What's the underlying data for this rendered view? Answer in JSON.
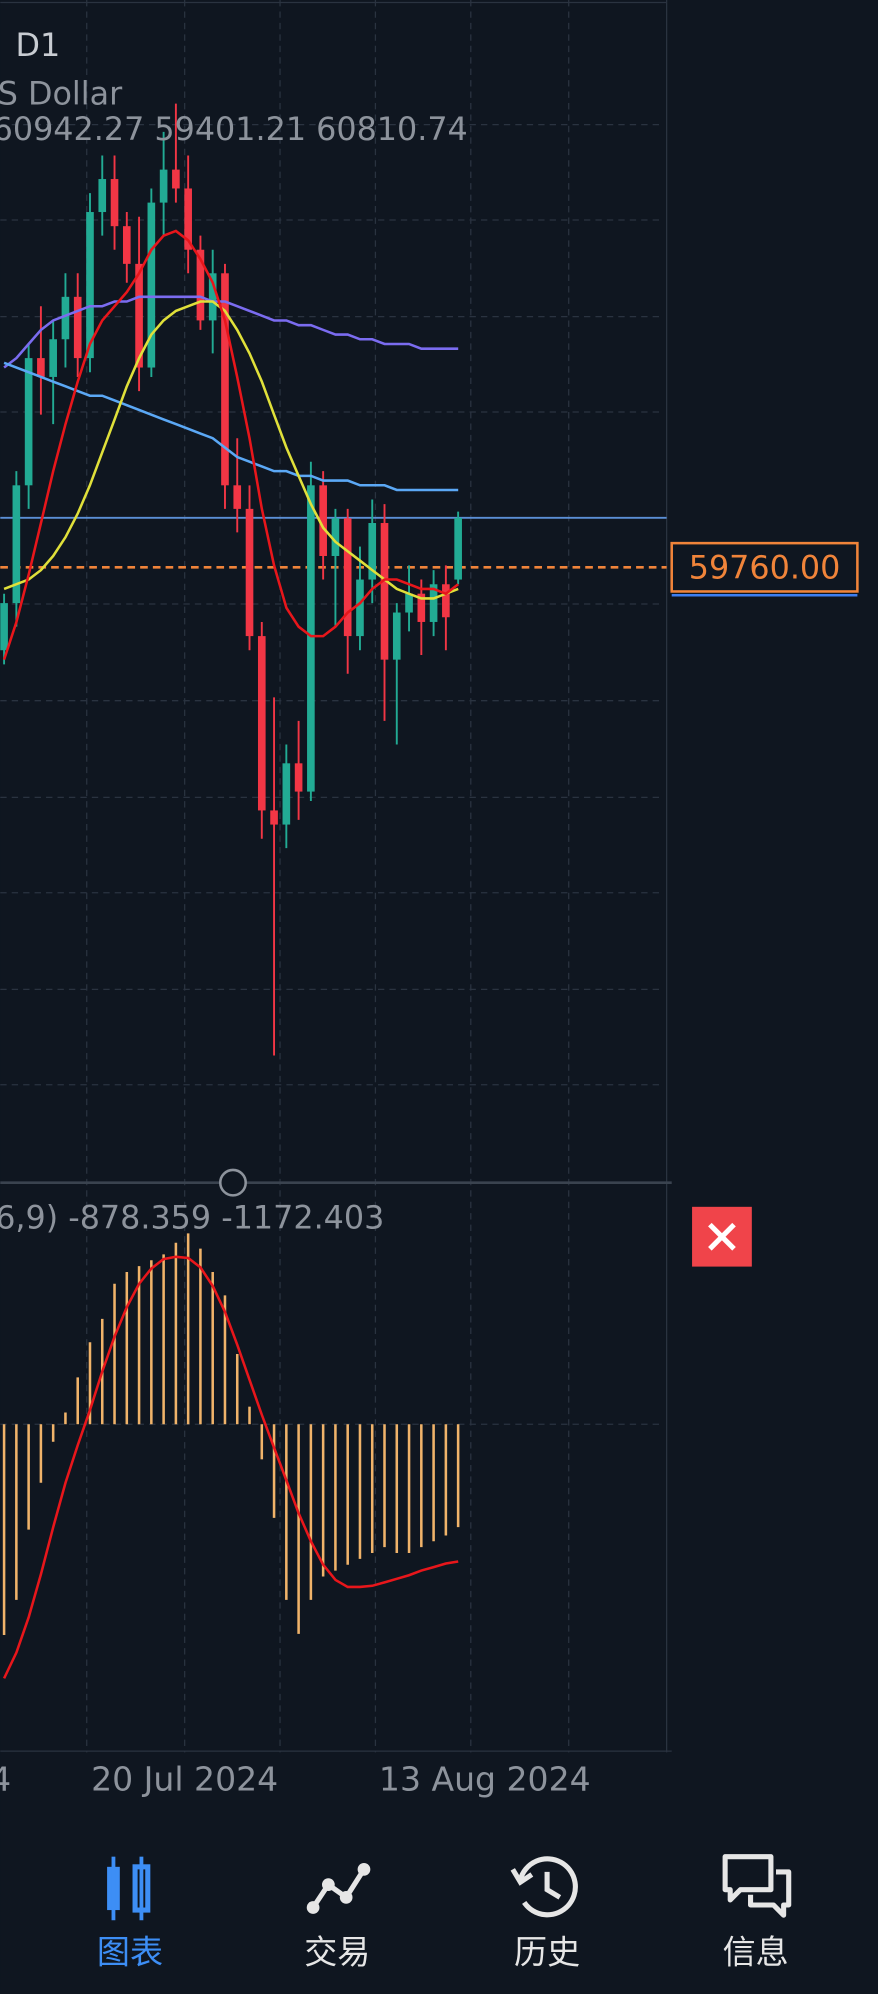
{
  "header": {
    "timeframe": "D1",
    "symbol": "S Dollar",
    "ohlc": "60942.27 59401.21 60810.74"
  },
  "chart_data": {
    "type": "candlestick",
    "ylim": [
      46700,
      71800
    ],
    "up_color": "#22ab94",
    "down_color": "#f23645",
    "open": [
      58000,
      59000,
      61500,
      64200,
      63800,
      64600,
      65500,
      64200,
      67300,
      68000,
      67000,
      66200,
      64000,
      67500,
      68200,
      67800,
      66500,
      65000,
      66000,
      61500,
      61000,
      58300,
      54600,
      54300,
      55600,
      55000,
      61500,
      60000,
      60800,
      58300,
      59500,
      60700,
      57800,
      58800,
      59200,
      58600,
      59400,
      59500
    ],
    "high": [
      59200,
      61800,
      64500,
      65300,
      65000,
      66000,
      66000,
      67700,
      68500,
      68500,
      67300,
      67200,
      67800,
      69000,
      69600,
      68500,
      66800,
      66500,
      66200,
      62500,
      61500,
      58600,
      57000,
      56000,
      56500,
      62000,
      61800,
      61000,
      61000,
      60200,
      61200,
      61100,
      59000,
      59800,
      59500,
      59700,
      59800,
      60942.27
    ],
    "low": [
      57700,
      58500,
      61000,
      63000,
      62800,
      64000,
      63800,
      63900,
      66800,
      66500,
      65800,
      63500,
      63800,
      66800,
      67500,
      66000,
      64800,
      64300,
      61000,
      60500,
      58000,
      54000,
      49400,
      53800,
      54400,
      54800,
      59500,
      58500,
      57500,
      58000,
      59000,
      56500,
      56000,
      58400,
      57900,
      58300,
      58000,
      59401.21
    ],
    "close": [
      59000,
      61500,
      64200,
      63800,
      64600,
      65500,
      64200,
      67300,
      68000,
      67000,
      66200,
      64000,
      67500,
      68200,
      67800,
      66500,
      65000,
      66000,
      61500,
      61000,
      58300,
      54600,
      54300,
      55600,
      55000,
      61500,
      60000,
      60800,
      58300,
      59500,
      60700,
      57800,
      58800,
      59200,
      58600,
      59400,
      58700,
      60810.74
    ],
    "series": [
      {
        "color": "#7b6cf0",
        "values": [
          64000,
          64200,
          64500,
          64800,
          65000,
          65100,
          65200,
          65300,
          65300,
          65400,
          65400,
          65500,
          65500,
          65500,
          65500,
          65500,
          65500,
          65400,
          65400,
          65300,
          65200,
          65100,
          65000,
          65000,
          64900,
          64900,
          64800,
          64700,
          64700,
          64600,
          64600,
          64500,
          64500,
          64500,
          64400,
          64400,
          64400,
          64400
        ]
      },
      {
        "color": "#5ba8f5",
        "values": [
          64100,
          64000,
          63900,
          63800,
          63700,
          63600,
          63500,
          63400,
          63400,
          63300,
          63200,
          63100,
          63000,
          62900,
          62800,
          62700,
          62600,
          62500,
          62300,
          62100,
          62000,
          61900,
          61800,
          61800,
          61700,
          61700,
          61600,
          61600,
          61600,
          61500,
          61500,
          61500,
          61400,
          61400,
          61400,
          61400,
          61400,
          61400
        ]
      },
      {
        "color": "#e0e03a",
        "values": [
          59300,
          59400,
          59500,
          59700,
          60000,
          60400,
          60900,
          61500,
          62200,
          62900,
          63600,
          64200,
          64700,
          65000,
          65200,
          65300,
          65400,
          65400,
          65200,
          64800,
          64300,
          63700,
          63000,
          62300,
          61700,
          61100,
          60600,
          60300,
          60100,
          59900,
          59700,
          59500,
          59300,
          59200,
          59100,
          59100,
          59200,
          59300
        ]
      },
      {
        "color": "#e8161b",
        "values": [
          57800,
          58600,
          59600,
          60700,
          61800,
          62800,
          63700,
          64500,
          65000,
          65300,
          65600,
          66000,
          66500,
          66800,
          66900,
          66700,
          66300,
          65800,
          65000,
          63800,
          62500,
          61000,
          59800,
          58900,
          58500,
          58300,
          58300,
          58500,
          58800,
          59000,
          59300,
          59500,
          59500,
          59400,
          59300,
          59300,
          59200,
          59400
        ]
      }
    ],
    "price_line": {
      "value": 59760,
      "label": "59760.00"
    },
    "x_labels": [
      "4",
      "20 Jul 2024",
      "13 Aug 2024"
    ]
  },
  "macd": {
    "type": "macd",
    "label": "6,9) -878.359 -1172.403",
    "ylim": [
      -2770,
      1900
    ],
    "histogram": [
      -1800,
      -1500,
      -900,
      -500,
      -150,
      100,
      400,
      700,
      900,
      1200,
      1300,
      1350,
      1400,
      1450,
      1550,
      1630,
      1500,
      1300,
      1100,
      600,
      150,
      -300,
      -800,
      -1500,
      -1790,
      -1500,
      -1300,
      -1250,
      -1200,
      -1150,
      -1100,
      -1050,
      -1100,
      -1100,
      -1050,
      -1000,
      -950,
      -878.359
    ],
    "signal": [
      -2170,
      -1950,
      -1650,
      -1280,
      -880,
      -500,
      -180,
      120,
      450,
      750,
      1000,
      1200,
      1330,
      1410,
      1430,
      1420,
      1340,
      1180,
      960,
      680,
      380,
      80,
      -200,
      -480,
      -760,
      -1000,
      -1200,
      -1330,
      -1390,
      -1390,
      -1380,
      -1350,
      -1320,
      -1290,
      -1250,
      -1220,
      -1190,
      -1172.403
    ],
    "histogram_color": "#f0b36a",
    "signal_color": "#e8161b"
  },
  "nav": {
    "items": [
      "图表",
      "交易",
      "历史",
      "信息"
    ]
  }
}
